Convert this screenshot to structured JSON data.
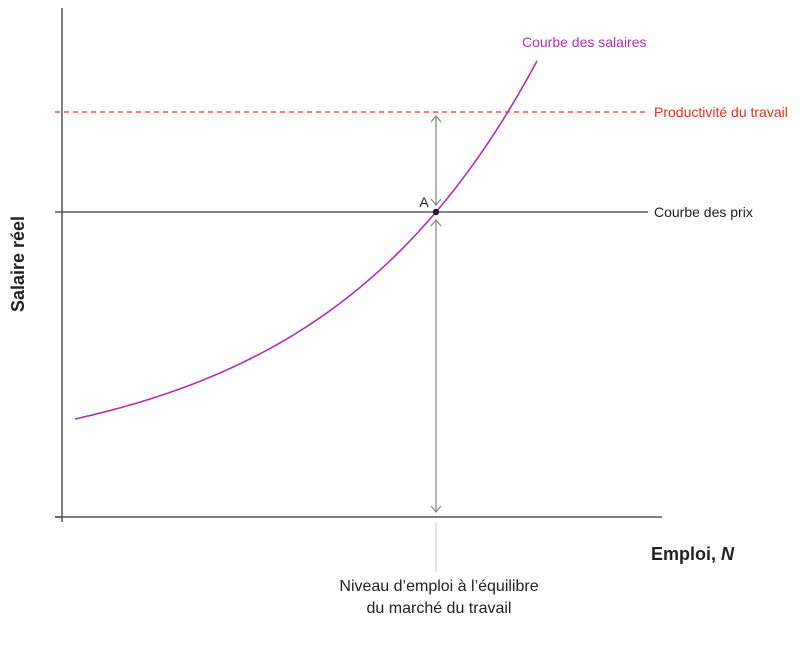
{
  "chart_data": {
    "type": "line",
    "title": "",
    "xlabel": "Emploi, ",
    "xlabel_var": "N",
    "ylabel": "Salaire réel",
    "grid": false,
    "series": [
      {
        "name": "Courbe des salaires",
        "kind": "convex-increasing-curve",
        "color": "#b030b0"
      },
      {
        "name": "Productivité du travail",
        "kind": "horizontal-dashed",
        "color": "#e0321e"
      },
      {
        "name": "Courbe des prix",
        "kind": "horizontal",
        "color": "#3a3a3a"
      }
    ],
    "point": {
      "label": "A"
    },
    "x_annotation": {
      "line1": "Niveau d’emploi à l’équilibre",
      "line2": "du marché du travail"
    }
  },
  "colors": {
    "axis": "#555555",
    "wage_curve": "#b030b0",
    "productivity": "#e0321e",
    "price_curve": "#3a3a3a",
    "arrow": "#8a8a8a",
    "guide": "#d4d4d4",
    "point": "#1a1a2e"
  }
}
